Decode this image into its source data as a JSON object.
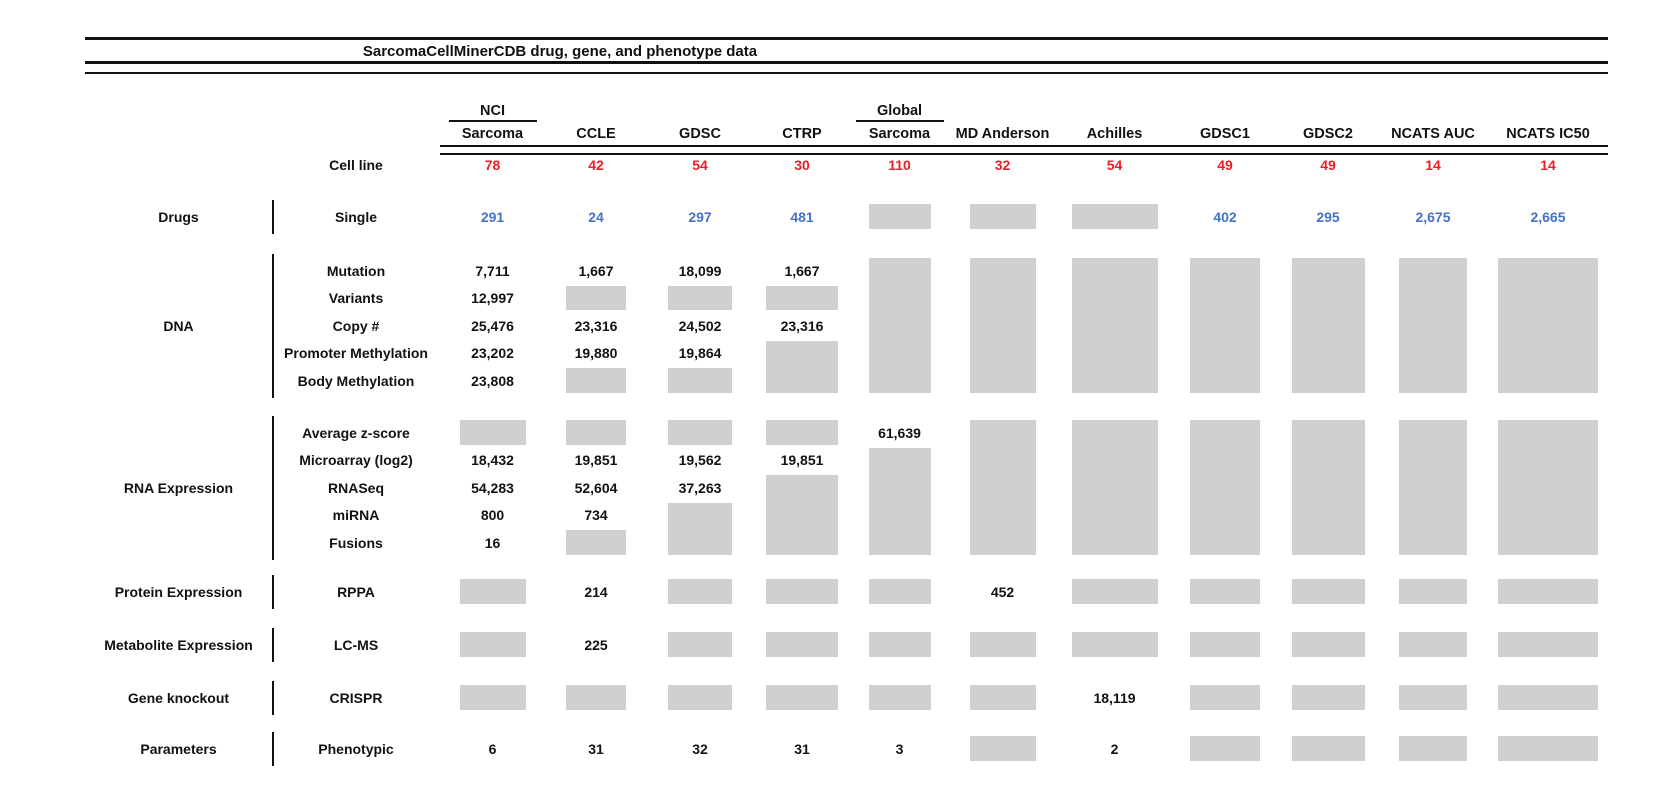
{
  "chart_data": {
    "type": "table",
    "title": "SarcomaCellMinerCDB drug, gene, and phenotype data",
    "columns": [
      {
        "top": "NCI",
        "label": "Sarcoma"
      },
      {
        "label": "CCLE"
      },
      {
        "label": "GDSC"
      },
      {
        "label": "CTRP"
      },
      {
        "top": "Global",
        "label": "Sarcoma"
      },
      {
        "label": "MD Anderson"
      },
      {
        "label": "Achilles"
      },
      {
        "label": "GDSC1"
      },
      {
        "label": "GDSC2"
      },
      {
        "label": "NCATS AUC"
      },
      {
        "label": "NCATS IC50"
      }
    ],
    "cell_line": {
      "label": "Cell line",
      "values": [
        "78",
        "42",
        "54",
        "30",
        "110",
        "32",
        "54",
        "49",
        "49",
        "14",
        "14"
      ]
    },
    "sections": [
      {
        "category": "Drugs",
        "rows": [
          {
            "label": "Single",
            "color": "blue",
            "cells": [
              "291",
              "24",
              "297",
              "481",
              {
                "gap": 1
              },
              {
                "gap": 1
              },
              {
                "gap": 1
              },
              "402",
              "295",
              "2,675",
              "2,665"
            ]
          }
        ]
      },
      {
        "category": "DNA",
        "rows": [
          {
            "label": "Mutation",
            "cells": [
              "7,711",
              "1,667",
              "18,099",
              "1,667",
              {
                "gap": 5
              },
              {
                "gap": 5
              },
              {
                "gap": 5
              },
              {
                "gap": 5
              },
              {
                "gap": 5
              },
              {
                "gap": 5
              },
              {
                "gap": 5
              }
            ]
          },
          {
            "label": "Variants",
            "cells": [
              "12,997",
              {
                "gap": 1
              },
              {
                "gap": 1
              },
              {
                "gap": 1
              },
              null,
              null,
              null,
              null,
              null,
              null,
              null
            ]
          },
          {
            "label": "Copy #",
            "cells": [
              "25,476",
              "23,316",
              "24,502",
              "23,316",
              null,
              null,
              null,
              null,
              null,
              null,
              null
            ]
          },
          {
            "label": "Promoter Methylation",
            "cells": [
              "23,202",
              "19,880",
              "19,864",
              {
                "gap": 2
              },
              null,
              null,
              null,
              null,
              null,
              null,
              null
            ]
          },
          {
            "label": "Body Methylation",
            "cells": [
              "23,808",
              {
                "gap": 1
              },
              {
                "gap": 1
              },
              null,
              null,
              null,
              null,
              null,
              null,
              null,
              null
            ]
          }
        ]
      },
      {
        "category": "RNA Expression",
        "rows": [
          {
            "label": "Average z-score",
            "cells": [
              {
                "gap": 1
              },
              {
                "gap": 1
              },
              {
                "gap": 1
              },
              {
                "gap": 1
              },
              "61,639",
              {
                "gap": 5
              },
              {
                "gap": 5
              },
              {
                "gap": 5
              },
              {
                "gap": 5
              },
              {
                "gap": 5
              },
              {
                "gap": 5
              }
            ]
          },
          {
            "label": "Microarray (log2)",
            "cells": [
              "18,432",
              "19,851",
              "19,562",
              "19,851",
              {
                "gap": 4
              },
              null,
              null,
              null,
              null,
              null,
              null
            ]
          },
          {
            "label": "RNASeq",
            "cells": [
              "54,283",
              "52,604",
              "37,263",
              {
                "gap": 3
              },
              null,
              null,
              null,
              null,
              null,
              null,
              null
            ]
          },
          {
            "label": "miRNA",
            "cells": [
              "800",
              "734",
              {
                "gap": 2
              },
              null,
              null,
              null,
              null,
              null,
              null,
              null,
              null
            ]
          },
          {
            "label": "Fusions",
            "cells": [
              "16",
              {
                "gap": 1
              },
              null,
              null,
              null,
              null,
              null,
              null,
              null,
              null,
              null
            ]
          }
        ]
      },
      {
        "category": "Protein Expression",
        "rows": [
          {
            "label": "RPPA",
            "cells": [
              {
                "gap": 1
              },
              "214",
              {
                "gap": 1
              },
              {
                "gap": 1
              },
              {
                "gap": 1
              },
              "452",
              {
                "gap": 1
              },
              {
                "gap": 1
              },
              {
                "gap": 1
              },
              {
                "gap": 1
              },
              {
                "gap": 1
              }
            ]
          }
        ]
      },
      {
        "category": "Metabolite Expression",
        "rows": [
          {
            "label": "LC-MS",
            "cells": [
              {
                "gap": 1
              },
              "225",
              {
                "gap": 1
              },
              {
                "gap": 1
              },
              {
                "gap": 1
              },
              {
                "gap": 1
              },
              {
                "gap": 1
              },
              {
                "gap": 1
              },
              {
                "gap": 1
              },
              {
                "gap": 1
              },
              {
                "gap": 1
              }
            ]
          }
        ]
      },
      {
        "category": "Gene knockout",
        "rows": [
          {
            "label": "CRISPR",
            "cells": [
              {
                "gap": 1
              },
              {
                "gap": 1
              },
              {
                "gap": 1
              },
              {
                "gap": 1
              },
              {
                "gap": 1
              },
              {
                "gap": 1
              },
              "18,119",
              {
                "gap": 1
              },
              {
                "gap": 1
              },
              {
                "gap": 1
              },
              {
                "gap": 1
              }
            ]
          }
        ]
      },
      {
        "category": "Parameters",
        "rows": [
          {
            "label": "Phenotypic",
            "cells": [
              "6",
              "31",
              "32",
              "31",
              "3",
              {
                "gap": 1
              },
              "2",
              {
                "gap": 1
              },
              {
                "gap": 1
              },
              {
                "gap": 1
              },
              {
                "gap": 1
              }
            ]
          }
        ]
      }
    ],
    "value_colors": {
      "default": "#121212",
      "drug_counts": "#4472C4",
      "cell_line_counts": "#EE1C25"
    },
    "missing_data_box_color": "#D0CECE"
  }
}
